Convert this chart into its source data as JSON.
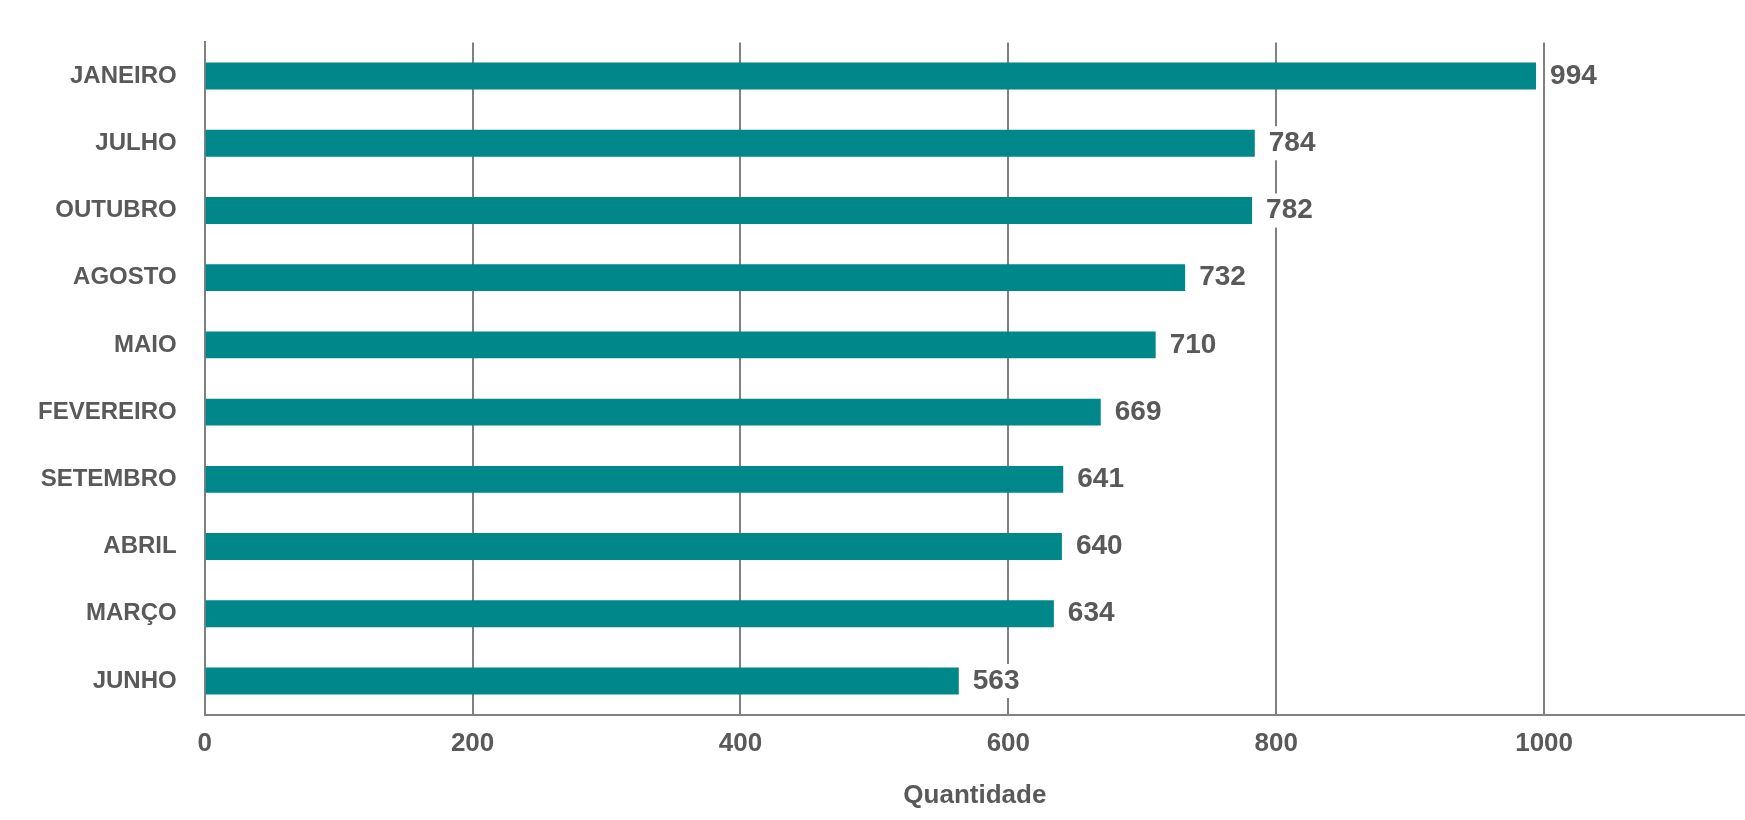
{
  "chart_data": {
    "type": "bar",
    "orientation": "horizontal",
    "xlabel": "Quantidade",
    "categories": [
      "JANEIRO",
      "JULHO",
      "OUTUBRO",
      "AGOSTO",
      "MAIO",
      "FEVEREIRO",
      "SETEMBRO",
      "ABRIL",
      "MARÇO",
      "JUNHO"
    ],
    "values": [
      994,
      784,
      782,
      732,
      710,
      669,
      641,
      640,
      634,
      563
    ],
    "color": "#00878a",
    "xlim": [
      0,
      1150
    ],
    "xticks": [
      0,
      200,
      400,
      600,
      800,
      1000
    ],
    "grid": "x",
    "data_labels": true
  }
}
